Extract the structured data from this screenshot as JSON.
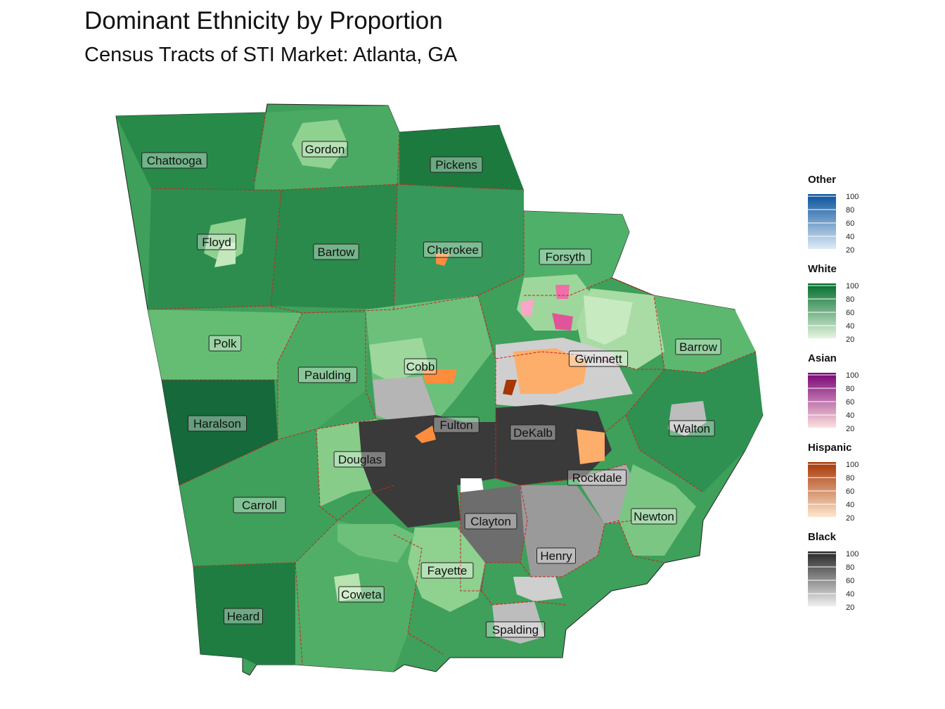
{
  "title": "Dominant Ethnicity by Proportion",
  "subtitle": "Census Tracts of STI Market: Atlanta, GA",
  "counties": [
    {
      "name": "Chattooga"
    },
    {
      "name": "Gordon"
    },
    {
      "name": "Pickens"
    },
    {
      "name": "Floyd"
    },
    {
      "name": "Bartow"
    },
    {
      "name": "Cherokee"
    },
    {
      "name": "Forsyth"
    },
    {
      "name": "Polk"
    },
    {
      "name": "Barrow"
    },
    {
      "name": "Gwinnett"
    },
    {
      "name": "Cobb"
    },
    {
      "name": "Paulding"
    },
    {
      "name": "Haralson"
    },
    {
      "name": "Fulton"
    },
    {
      "name": "DeKalb"
    },
    {
      "name": "Walton"
    },
    {
      "name": "Douglas"
    },
    {
      "name": "Rockdale"
    },
    {
      "name": "Carroll"
    },
    {
      "name": "Newton"
    },
    {
      "name": "Clayton"
    },
    {
      "name": "Henry"
    },
    {
      "name": "Fayette"
    },
    {
      "name": "Coweta"
    },
    {
      "name": "Heard"
    },
    {
      "name": "Spalding"
    }
  ],
  "legend": [
    {
      "title": "Other",
      "low": "#deebf7",
      "high": "#08519c",
      "ticks": [
        "100",
        "80",
        "60",
        "40",
        "20"
      ]
    },
    {
      "title": "White",
      "low": "#e5f5e0",
      "high": "#006d2c",
      "ticks": [
        "100",
        "80",
        "60",
        "40",
        "20"
      ]
    },
    {
      "title": "Asian",
      "low": "#fde0dd",
      "high": "#7a0177",
      "ticks": [
        "100",
        "80",
        "60",
        "40",
        "20"
      ]
    },
    {
      "title": "Hispanic",
      "low": "#fee6ce",
      "high": "#a63603",
      "ticks": [
        "100",
        "80",
        "60",
        "40",
        "20"
      ]
    },
    {
      "title": "Black",
      "low": "#f0f0f0",
      "high": "#252525",
      "ticks": [
        "100",
        "80",
        "60",
        "40",
        "20"
      ]
    }
  ]
}
